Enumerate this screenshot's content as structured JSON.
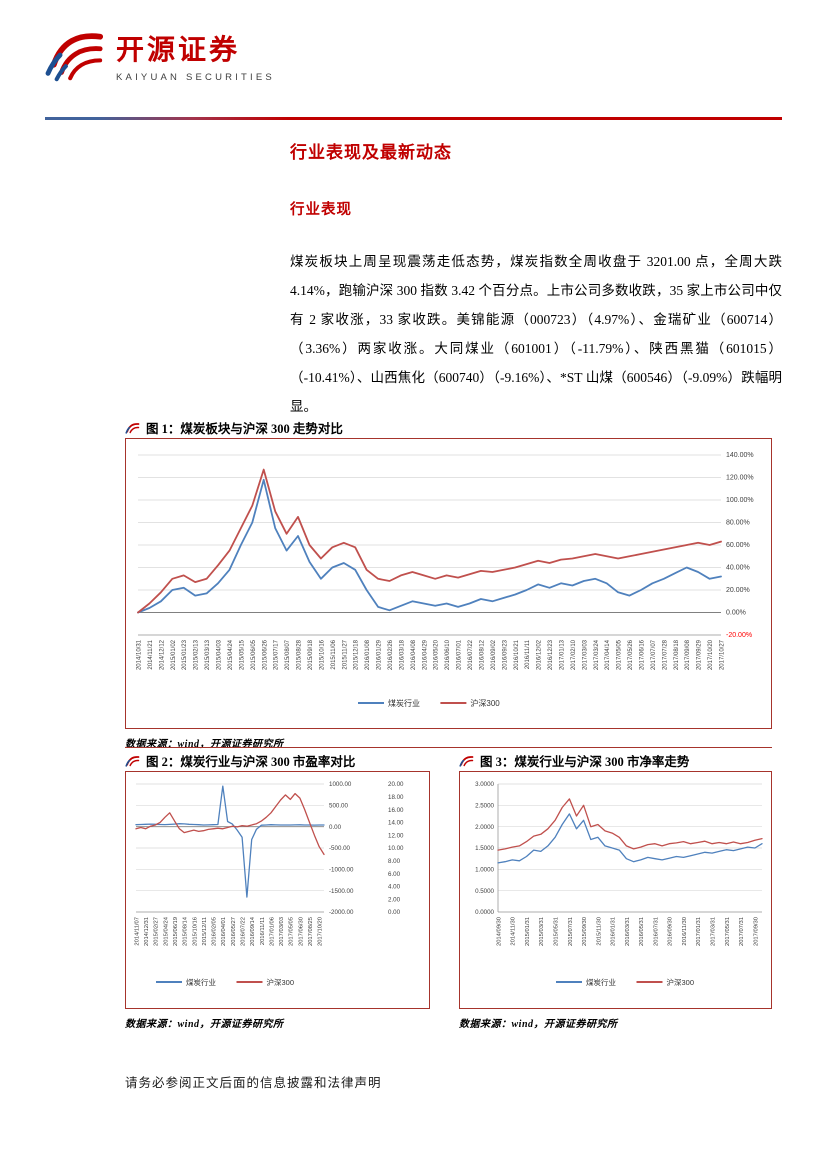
{
  "colors": {
    "brand": "#c00000",
    "rule": "#a6342c",
    "line_blue": "#4f81bd",
    "line_red": "#c0504d",
    "grid": "#d9d9d9",
    "negative_tick": "#ff0000"
  },
  "header": {
    "logo_cn": "开源证券",
    "logo_en": "KAIYUAN SECURITIES"
  },
  "body": {
    "section_title": "行业表现及最新动态",
    "subsection_title": "行业表现",
    "paragraph": "煤炭板块上周呈现震荡走低态势，煤炭指数全周收盘于 3201.00 点，全周大跌 4.14%，跑输沪深 300 指数 3.42 个百分点。上市公司多数收跌，35 家上市公司中仅有 2 家收涨，33 家收跌。美锦能源（000723）（4.97%）、金瑞矿业（600714）（3.36%）两家收涨。大同煤业（601001）（-11.79%）、陕西黑猫（601015）（-10.41%）、山西焦化（600740）（-9.16%）、*ST 山煤（600546）（-9.09%）跌幅明显。",
    "footer_note": "请务必参阅正文后面的信息披露和法律声明"
  },
  "figures": [
    {
      "title": "图 1：煤炭板块与沪深 300 走势对比",
      "source": "数据来源：wind，开源证券研究所"
    },
    {
      "title": "图 2：煤炭行业与沪深 300 市盈率对比",
      "source": "数据来源：wind，开源证券研究所"
    },
    {
      "title": "图 3：煤炭行业与沪深 300 市净率走势",
      "source": "数据来源：wind，开源证券研究所"
    }
  ],
  "chart_data": [
    {
      "type": "line",
      "title": "煤炭板块与沪深300走势对比",
      "legend_position": "bottom",
      "x_labels": [
        "2014/10/31",
        "2014/11/21",
        "2014/12/12",
        "2015/01/02",
        "2015/01/23",
        "2015/02/13",
        "2015/03/13",
        "2015/04/03",
        "2015/04/24",
        "2015/05/15",
        "2015/06/05",
        "2015/06/26",
        "2015/07/17",
        "2015/08/07",
        "2015/08/28",
        "2015/09/18",
        "2015/10/16",
        "2015/11/06",
        "2015/11/27",
        "2015/12/18",
        "2016/01/08",
        "2016/01/29",
        "2016/02/26",
        "2016/03/18",
        "2016/04/08",
        "2016/04/29",
        "2016/05/20",
        "2016/06/10",
        "2016/07/01",
        "2016/07/22",
        "2016/08/12",
        "2016/09/02",
        "2016/09/23",
        "2016/10/21",
        "2016/11/11",
        "2016/12/02",
        "2016/12/23",
        "2017/01/13",
        "2017/02/10",
        "2017/03/03",
        "2017/03/24",
        "2017/04/14",
        "2017/05/05",
        "2017/05/26",
        "2017/06/16",
        "2017/07/07",
        "2017/07/28",
        "2017/08/18",
        "2017/09/08",
        "2017/09/29",
        "2017/10/20",
        "2017/10/27"
      ],
      "axes": {
        "primary": {
          "side": "right",
          "min": -20,
          "max": 140,
          "tick_labels": [
            "140.00%",
            "120.00%",
            "100.00%",
            "80.00%",
            "60.00%",
            "40.00%",
            "20.00%",
            "0.00%",
            "-20.00%"
          ],
          "red_tick": "-20.00%"
        }
      },
      "series": [
        {
          "name": "煤炭行业",
          "color": "#4f81bd",
          "axis": "primary",
          "values": [
            0,
            4,
            10,
            20,
            22,
            15,
            17,
            26,
            38,
            60,
            80,
            118,
            75,
            55,
            68,
            45,
            30,
            40,
            44,
            38,
            20,
            5,
            2,
            6,
            10,
            8,
            6,
            8,
            5,
            8,
            12,
            10,
            13,
            16,
            20,
            25,
            22,
            26,
            24,
            28,
            30,
            26,
            18,
            15,
            20,
            26,
            30,
            35,
            40,
            36,
            30,
            32
          ]
        },
        {
          "name": "沪深300",
          "color": "#c0504d",
          "axis": "primary",
          "values": [
            0,
            8,
            18,
            30,
            33,
            27,
            30,
            42,
            55,
            75,
            95,
            127,
            90,
            70,
            85,
            60,
            48,
            58,
            62,
            58,
            38,
            30,
            28,
            33,
            36,
            33,
            30,
            33,
            31,
            34,
            37,
            36,
            38,
            40,
            43,
            46,
            44,
            47,
            48,
            50,
            52,
            50,
            48,
            50,
            52,
            54,
            56,
            58,
            60,
            62,
            60,
            63
          ]
        }
      ]
    },
    {
      "type": "line",
      "title": "煤炭行业与沪深300市盈率对比",
      "legend_position": "bottom",
      "x_labels": [
        "2014/11/07",
        "2014/12/31",
        "2015/02/27",
        "2015/04/24",
        "2015/06/19",
        "2015/08/14",
        "2015/10/16",
        "2015/12/11",
        "2016/02/05",
        "2016/04/01",
        "2016/05/27",
        "2016/07/22",
        "2016/09/14",
        "2016/11/11",
        "2017/01/06",
        "2017/03/03",
        "2017/05/05",
        "2017/06/30",
        "2017/08/25",
        "2017/10/20"
      ],
      "axes": {
        "primary": {
          "side": "right-inner",
          "min": -2000,
          "max": 1000,
          "tick_labels": [
            "1000.00",
            "500.00",
            "0.00",
            "-500.00",
            "-1000.00",
            "-1500.00",
            "-2000.00"
          ]
        },
        "secondary": {
          "side": "right-outer",
          "min": 0,
          "max": 20,
          "tick_labels": [
            "20.00",
            "18.00",
            "16.00",
            "14.00",
            "12.00",
            "10.00",
            "8.00",
            "6.00",
            "4.00",
            "2.00",
            "0.00"
          ]
        }
      },
      "series": [
        {
          "name": "煤炭行业",
          "color": "#4f81bd",
          "axis": "primary",
          "values": [
            45,
            50,
            55,
            60,
            55,
            50,
            48,
            52,
            60,
            70,
            65,
            55,
            50,
            45,
            40,
            42,
            45,
            50,
            950,
            120,
            60,
            -80,
            -250,
            -1650,
            -300,
            -60,
            35,
            40,
            45,
            42,
            40,
            38,
            40,
            42,
            44,
            40,
            38,
            36,
            38,
            40
          ]
        },
        {
          "name": "沪深300",
          "color": "#c0504d",
          "axis": "secondary",
          "values": [
            13.0,
            13.2,
            13.0,
            13.4,
            13.6,
            14.0,
            14.8,
            15.5,
            14.2,
            13.0,
            12.4,
            12.6,
            12.8,
            12.6,
            12.7,
            12.9,
            13.0,
            13.1,
            13.0,
            13.2,
            13.4,
            13.3,
            13.5,
            13.4,
            13.6,
            13.8,
            14.2,
            14.8,
            15.5,
            16.5,
            17.5,
            18.3,
            17.6,
            18.5,
            17.8,
            16.0,
            14.0,
            12.0,
            10.2,
            9.0
          ]
        }
      ]
    },
    {
      "type": "line",
      "title": "煤炭行业与沪深300市净率走势",
      "legend_position": "bottom",
      "x_labels": [
        "2014/09/30",
        "2014/11/30",
        "2015/01/31",
        "2015/03/31",
        "2015/05/31",
        "2015/07/31",
        "2015/09/30",
        "2015/11/30",
        "2016/01/31",
        "2016/03/31",
        "2016/05/31",
        "2016/07/31",
        "2016/09/30",
        "2016/11/30",
        "2017/01/31",
        "2017/03/31",
        "2017/05/31",
        "2017/07/31",
        "2017/09/30"
      ],
      "axes": {
        "primary": {
          "side": "left",
          "min": 0,
          "max": 3,
          "tick_labels": [
            "3.0000",
            "2.5000",
            "2.0000",
            "1.5000",
            "1.0000",
            "0.5000",
            "0.0000"
          ]
        }
      },
      "series": [
        {
          "name": "煤炭行业",
          "color": "#4f81bd",
          "axis": "primary",
          "values": [
            1.15,
            1.18,
            1.22,
            1.2,
            1.3,
            1.45,
            1.42,
            1.55,
            1.75,
            2.05,
            2.3,
            1.95,
            2.15,
            1.7,
            1.75,
            1.55,
            1.5,
            1.45,
            1.25,
            1.18,
            1.22,
            1.28,
            1.25,
            1.22,
            1.26,
            1.3,
            1.28,
            1.32,
            1.36,
            1.4,
            1.38,
            1.42,
            1.46,
            1.44,
            1.48,
            1.52,
            1.5,
            1.6
          ]
        },
        {
          "name": "沪深300",
          "color": "#c0504d",
          "axis": "primary",
          "values": [
            1.45,
            1.48,
            1.52,
            1.55,
            1.65,
            1.78,
            1.82,
            1.95,
            2.15,
            2.45,
            2.65,
            2.25,
            2.5,
            2.0,
            2.05,
            1.9,
            1.85,
            1.75,
            1.55,
            1.48,
            1.52,
            1.58,
            1.6,
            1.55,
            1.6,
            1.62,
            1.65,
            1.6,
            1.63,
            1.66,
            1.6,
            1.63,
            1.6,
            1.64,
            1.6,
            1.63,
            1.68,
            1.72
          ]
        }
      ]
    }
  ]
}
